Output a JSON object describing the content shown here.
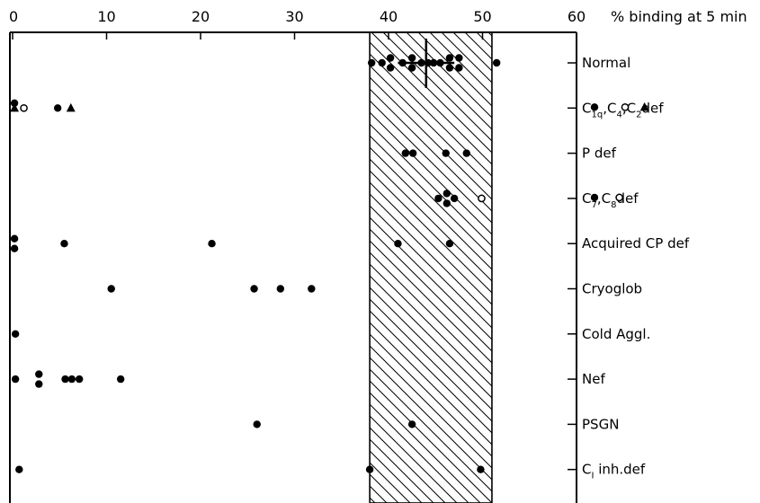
{
  "chart_data": {
    "type": "scatter",
    "xlabel": "% binding at 5 min",
    "xlim": [
      0,
      60
    ],
    "x_ticks": [
      0,
      10,
      20,
      30,
      40,
      50,
      60
    ],
    "normal_range": [
      38,
      51
    ],
    "categories": [
      {
        "label": "Normal",
        "points": [
          {
            "x": 38.2,
            "d": 0
          },
          {
            "x": 39.3,
            "d": 0
          },
          {
            "x": 40.2,
            "d": -1
          },
          {
            "x": 40.2,
            "d": 1
          },
          {
            "x": 41.5,
            "d": 0
          },
          {
            "x": 42.5,
            "d": -1
          },
          {
            "x": 42.5,
            "d": 1
          },
          {
            "x": 43.5,
            "d": 0
          },
          {
            "x": 44.2,
            "d": 0
          },
          {
            "x": 44.8,
            "d": 0
          },
          {
            "x": 45.5,
            "d": 0
          },
          {
            "x": 46.5,
            "d": -1
          },
          {
            "x": 46.5,
            "d": 1
          },
          {
            "x": 47.5,
            "d": -1
          },
          {
            "x": 47.5,
            "d": 1
          },
          {
            "x": 51.5,
            "d": 0
          }
        ],
        "mean": 44,
        "sd_low": 41,
        "sd_high": 47
      },
      {
        "label_parts": [
          {
            "marker": "filled-circle",
            "base": "C",
            "sub": "1q",
            "after": ","
          },
          {
            "marker": "open-circle",
            "base": "C",
            "sub": "4",
            "after": ","
          },
          {
            "marker": "triangle",
            "base": "C",
            "sub": "2",
            "after": "def"
          }
        ],
        "points": [
          {
            "x": 0.2,
            "d": -1,
            "m": "filled-circle"
          },
          {
            "x": 0.2,
            "d": 0,
            "m": "triangle"
          },
          {
            "x": 1.2,
            "d": 0,
            "m": "open-circle"
          },
          {
            "x": 4.8,
            "d": 0,
            "m": "filled-circle"
          },
          {
            "x": 6.2,
            "d": 0,
            "m": "triangle"
          }
        ]
      },
      {
        "label": "P def",
        "points": [
          {
            "x": 41.8,
            "d": 0
          },
          {
            "x": 42.6,
            "d": 0
          },
          {
            "x": 46.1,
            "d": 0
          },
          {
            "x": 48.3,
            "d": 0
          }
        ]
      },
      {
        "label_parts": [
          {
            "marker": "filled-circle",
            "base": "C",
            "sub": "7",
            "after": ","
          },
          {
            "marker": "open-circle",
            "base": "C",
            "sub": "8",
            "after": "def"
          }
        ],
        "points": [
          {
            "x": 45.3,
            "d": 0,
            "m": "filled-circle"
          },
          {
            "x": 46.2,
            "d": -1,
            "m": "filled-circle"
          },
          {
            "x": 46.2,
            "d": 1,
            "m": "filled-circle"
          },
          {
            "x": 47.0,
            "d": 0,
            "m": "filled-circle"
          },
          {
            "x": 49.9,
            "d": 0,
            "m": "open-circle"
          }
        ]
      },
      {
        "label": "Acquired CP def",
        "points": [
          {
            "x": 0.2,
            "d": -1
          },
          {
            "x": 0.2,
            "d": 1
          },
          {
            "x": 5.5,
            "d": 0
          },
          {
            "x": 21.2,
            "d": 0
          },
          {
            "x": 41.0,
            "d": 0
          },
          {
            "x": 46.5,
            "d": 0
          }
        ]
      },
      {
        "label": "Cryoglob",
        "points": [
          {
            "x": 10.5,
            "d": 0
          },
          {
            "x": 25.7,
            "d": 0
          },
          {
            "x": 28.5,
            "d": 0
          },
          {
            "x": 31.8,
            "d": 0
          }
        ]
      },
      {
        "label": "Cold Aggl.",
        "points": [
          {
            "x": 0.3,
            "d": 0
          }
        ]
      },
      {
        "label": "Nef",
        "points": [
          {
            "x": 0.3,
            "d": 0
          },
          {
            "x": 2.8,
            "d": -1
          },
          {
            "x": 2.8,
            "d": 1
          },
          {
            "x": 5.6,
            "d": 0
          },
          {
            "x": 6.3,
            "d": 0
          },
          {
            "x": 7.1,
            "d": 0
          },
          {
            "x": 11.5,
            "d": 0
          }
        ]
      },
      {
        "label": "PSGN",
        "points": [
          {
            "x": 26.0,
            "d": 0
          },
          {
            "x": 42.5,
            "d": 0
          }
        ]
      },
      {
        "label_parts": [
          {
            "base": "C",
            "sub": "I",
            "after": " inh.def"
          }
        ],
        "points": [
          {
            "x": 0.7,
            "d": 0
          },
          {
            "x": 38.0,
            "d": 0
          },
          {
            "x": 49.8,
            "d": 0
          }
        ]
      }
    ]
  }
}
